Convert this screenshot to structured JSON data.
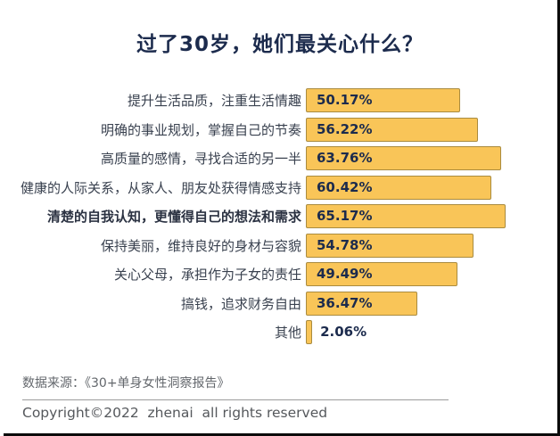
{
  "page": {
    "title": "过了30岁，她们最关心什么？"
  },
  "chart_data": {
    "type": "bar",
    "orientation": "horizontal",
    "title": "过了30岁，她们最关心什么？",
    "categories": [
      "提升生活品质，注重生活情趣",
      "明确的事业规划，掌握自己的节奏",
      "高质量的感情，寻找合适的另一半",
      "健康的人际关系，从家人、朋友处获得情感支持",
      "清楚的自我认知，更懂得自己的想法和需求",
      "保持美丽，维持良好的身材与容貌",
      "关心父母，承担作为子女的责任",
      "搞钱，追求财务自由",
      "其他"
    ],
    "values": [
      50.17,
      56.22,
      63.76,
      60.42,
      65.17,
      54.78,
      49.49,
      36.47,
      2.06
    ],
    "value_labels": [
      "50.17%",
      "56.22%",
      "63.76%",
      "60.42%",
      "65.17%",
      "54.78%",
      "49.49%",
      "36.47%",
      "2.06%"
    ],
    "highlighted_index": 4,
    "xlim": [
      0,
      70
    ],
    "grid": false,
    "legend": false,
    "bar_color": "#F9C558",
    "bar_border_color": "#A98B3F",
    "value_text_color": "#1C2B4D",
    "title_color": "#1C2B4D"
  },
  "footer": {
    "source": "数据来源：《30+单身女性洞察报告》",
    "copyright": "Copyright©2022  zhenai  all rights reserved"
  }
}
